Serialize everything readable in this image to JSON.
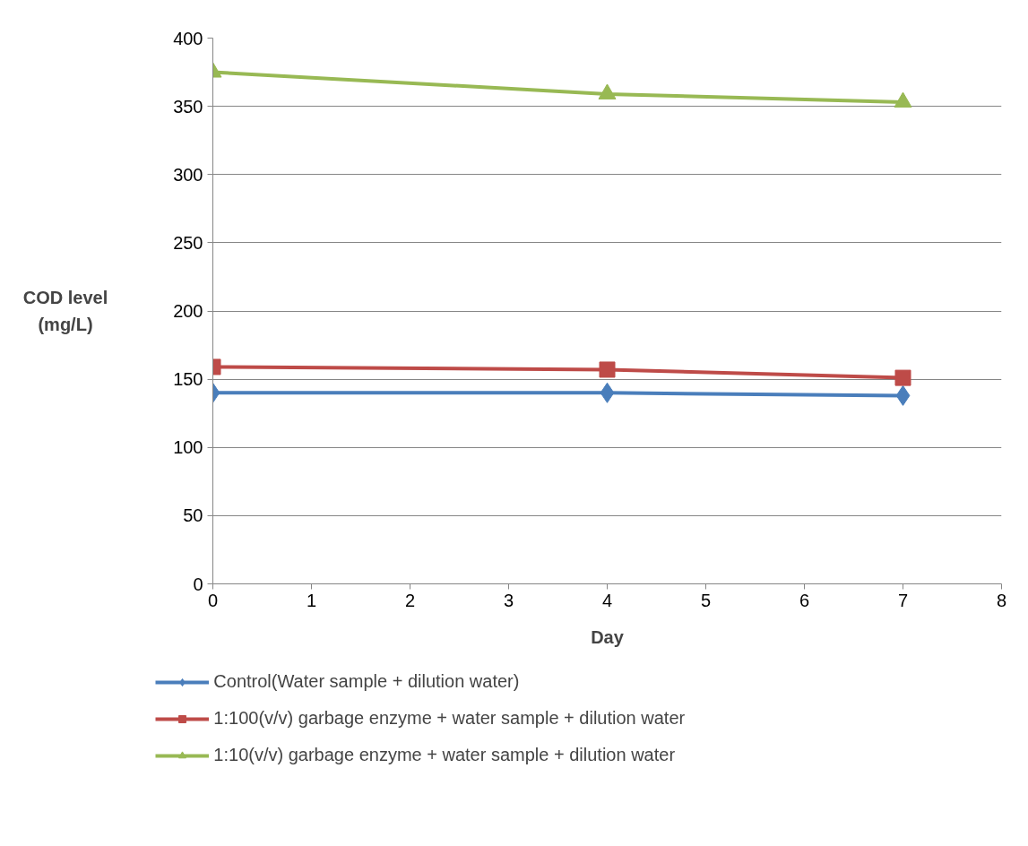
{
  "chart_data": {
    "type": "line",
    "xlabel": "Day",
    "ylabel": "COD level (mg/L)",
    "xlim": [
      0,
      8
    ],
    "xticks": [
      0,
      1,
      2,
      3,
      4,
      5,
      6,
      7,
      8
    ],
    "ylim": [
      0,
      400
    ],
    "yticks": [
      0,
      50,
      100,
      150,
      200,
      250,
      300,
      350,
      400
    ],
    "grid": "y",
    "legend": "bottom",
    "line_style": "solid",
    "series": [
      {
        "name": "Control(Water sample + dilution water)",
        "color": "#4a7ebb",
        "marker": "diamond",
        "x": [
          0,
          4,
          7
        ],
        "values": [
          140,
          140,
          138
        ]
      },
      {
        "name": "1:100(v/v) garbage enzyme + water sample + dilution water",
        "color": "#be4b48",
        "marker": "square",
        "x": [
          0,
          4,
          7
        ],
        "values": [
          159,
          157,
          151
        ]
      },
      {
        "name": "1:10(v/v) garbage enzyme + water sample + dilution water",
        "color": "#98b954",
        "marker": "triangle",
        "x": [
          0,
          4,
          7
        ],
        "values": [
          375,
          359,
          353
        ]
      }
    ]
  }
}
